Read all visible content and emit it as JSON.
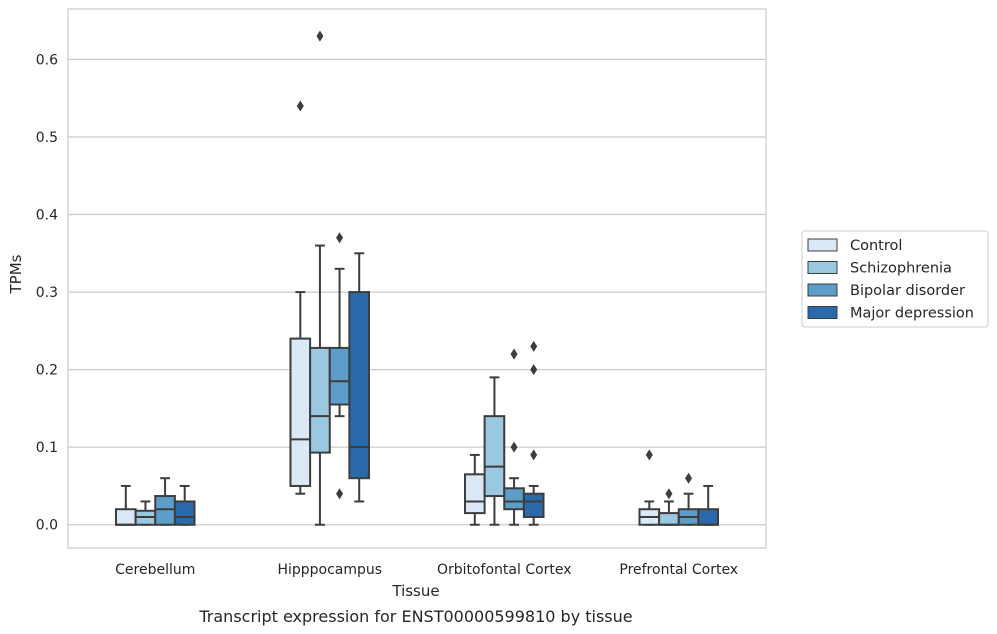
{
  "caption": "Transcript expression for ENST00000599810 by tissue",
  "chart_data": {
    "type": "box",
    "xlabel": "Tissue",
    "ylabel": "TPMs",
    "ylim": [
      -0.03,
      0.665
    ],
    "yticks": [
      "0.0",
      "0.1",
      "0.2",
      "0.3",
      "0.4",
      "0.5",
      "0.6"
    ],
    "grid": "horizontal",
    "legend_position": "right",
    "categories": [
      "Cerebellum",
      "Hipppocampus",
      "Orbitofontal Cortex",
      "Prefrontal Cortex"
    ],
    "series": [
      {
        "name": "Control",
        "color": "#dbe9f6",
        "boxes": [
          {
            "whislo": 0.0,
            "q1": 0.0,
            "med": 0.0,
            "q3": 0.02,
            "whishi": 0.05,
            "fliers": []
          },
          {
            "whislo": 0.04,
            "q1": 0.05,
            "med": 0.11,
            "q3": 0.24,
            "whishi": 0.3,
            "fliers": [
              0.54
            ]
          },
          {
            "whislo": 0.0,
            "q1": 0.015,
            "med": 0.03,
            "q3": 0.065,
            "whishi": 0.09,
            "fliers": []
          },
          {
            "whislo": 0.0,
            "q1": 0.0,
            "med": 0.01,
            "q3": 0.02,
            "whishi": 0.03,
            "fliers": [
              0.09
            ]
          }
        ]
      },
      {
        "name": "Schizophrenia",
        "color": "#9ac8e0",
        "boxes": [
          {
            "whislo": 0.0,
            "q1": 0.0,
            "med": 0.01,
            "q3": 0.018,
            "whishi": 0.03,
            "fliers": []
          },
          {
            "whislo": 0.0,
            "q1": 0.093,
            "med": 0.14,
            "q3": 0.228,
            "whishi": 0.36,
            "fliers": [
              0.63
            ]
          },
          {
            "whislo": 0.0,
            "q1": 0.037,
            "med": 0.075,
            "q3": 0.14,
            "whishi": 0.19,
            "fliers": []
          },
          {
            "whislo": 0.0,
            "q1": 0.0,
            "med": 0.0,
            "q3": 0.015,
            "whishi": 0.03,
            "fliers": [
              0.04
            ]
          }
        ]
      },
      {
        "name": "Bipolar disorder",
        "color": "#5a9ec9",
        "boxes": [
          {
            "whislo": 0.0,
            "q1": 0.0,
            "med": 0.02,
            "q3": 0.037,
            "whishi": 0.06,
            "fliers": []
          },
          {
            "whislo": 0.14,
            "q1": 0.155,
            "med": 0.185,
            "q3": 0.228,
            "whishi": 0.33,
            "fliers": [
              0.37,
              0.04
            ]
          },
          {
            "whislo": 0.0,
            "q1": 0.02,
            "med": 0.03,
            "q3": 0.047,
            "whishi": 0.06,
            "fliers": [
              0.22,
              0.1
            ]
          },
          {
            "whislo": 0.0,
            "q1": 0.0,
            "med": 0.01,
            "q3": 0.02,
            "whishi": 0.04,
            "fliers": [
              0.06
            ]
          }
        ]
      },
      {
        "name": "Major depression",
        "color": "#2a6aaa",
        "boxes": [
          {
            "whislo": 0.0,
            "q1": 0.0,
            "med": 0.01,
            "q3": 0.03,
            "whishi": 0.05,
            "fliers": []
          },
          {
            "whislo": 0.03,
            "q1": 0.06,
            "med": 0.1,
            "q3": 0.3,
            "whishi": 0.35,
            "fliers": []
          },
          {
            "whislo": 0.0,
            "q1": 0.01,
            "med": 0.03,
            "q3": 0.04,
            "whishi": 0.05,
            "fliers": [
              0.23,
              0.2,
              0.09
            ]
          },
          {
            "whislo": 0.0,
            "q1": 0.0,
            "med": 0.0,
            "q3": 0.02,
            "whishi": 0.05,
            "fliers": []
          }
        ]
      }
    ]
  }
}
